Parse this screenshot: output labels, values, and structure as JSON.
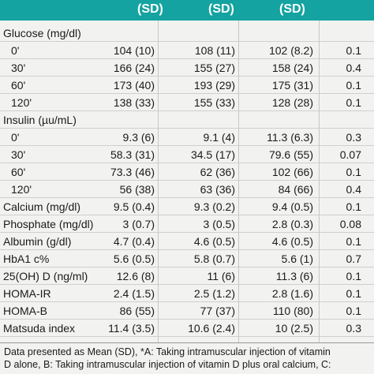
{
  "header": [
    "(SD)",
    "(SD)",
    "(SD)"
  ],
  "rows": [
    {
      "label": "Glucose (mg/dl)",
      "sub": false,
      "v": [
        "",
        "",
        "",
        ""
      ]
    },
    {
      "label": "0'",
      "sub": true,
      "v": [
        "104 (10)",
        "108 (11)",
        "102 (8.2)",
        "0.1"
      ]
    },
    {
      "label": "30'",
      "sub": true,
      "v": [
        "166 (24)",
        "155 (27)",
        "158 (24)",
        "0.4"
      ]
    },
    {
      "label": "60'",
      "sub": true,
      "v": [
        "173 (40)",
        "193 (29)",
        "175 (31)",
        "0.1"
      ]
    },
    {
      "label": "120'",
      "sub": true,
      "v": [
        "138 (33)",
        "155 (33)",
        "128 (28)",
        "0.1"
      ]
    },
    {
      "label": "Insulin (µu/mL)",
      "sub": false,
      "v": [
        "",
        "",
        "",
        ""
      ]
    },
    {
      "label": "0'",
      "sub": true,
      "v": [
        "9.3 (6)",
        "9.1 (4)",
        "11.3 (6.3)",
        "0.3"
      ]
    },
    {
      "label": "30'",
      "sub": true,
      "v": [
        "58.3 (31)",
        "34.5 (17)",
        "79.6 (55)",
        "0.07"
      ]
    },
    {
      "label": "60'",
      "sub": true,
      "v": [
        "73.3 (46)",
        "62 (36)",
        "102 (66)",
        "0.1"
      ]
    },
    {
      "label": "120'",
      "sub": true,
      "v": [
        "56 (38)",
        "63 (36)",
        "84 (66)",
        "0.4"
      ]
    },
    {
      "label": "Calcium (mg/dl)",
      "sub": false,
      "v": [
        "9.5 (0.4)",
        "9.3 (0.2)",
        "9.4 (0.5)",
        "0.1"
      ]
    },
    {
      "label": "Phosphate (mg/dl)",
      "sub": false,
      "v": [
        "3 (0.7)",
        "3 (0.5)",
        "2.8 (0.3)",
        "0.08"
      ]
    },
    {
      "label": "Albumin (g/dl)",
      "sub": false,
      "v": [
        "4.7 (0.4)",
        "4.6 (0.5)",
        "4.6 (0.5)",
        "0.1"
      ]
    },
    {
      "label": "HbA1 c%",
      "sub": false,
      "v": [
        "5.6 (0.5)",
        "5.8 (0.7)",
        "5.6 (1)",
        "0.7"
      ]
    },
    {
      "label": "25(OH) D (ng/ml)",
      "sub": false,
      "v": [
        "12.6 (8)",
        "11 (6)",
        "11.3 (6)",
        "0.1"
      ]
    },
    {
      "label": "HOMA-IR",
      "sub": false,
      "v": [
        "2.4 (1.5)",
        "2.5 (1.2)",
        "2.8 (1.6)",
        "0.1"
      ]
    },
    {
      "label": "HOMA-B",
      "sub": false,
      "v": [
        "86 (55)",
        "77 (37)",
        "110 (80)",
        "0.1"
      ]
    },
    {
      "label": "Matsuda index",
      "sub": false,
      "v": [
        "11.4 (3.5)",
        "10.6 (2.4)",
        "10 (2.5)",
        "0.3"
      ]
    }
  ],
  "footnote": [
    "Data presented as Mean (SD), *A: Taking intramuscular injection of vitamin",
    "D alone, B: Taking intramuscular injection of vitamin D plus oral calcium, C:"
  ]
}
